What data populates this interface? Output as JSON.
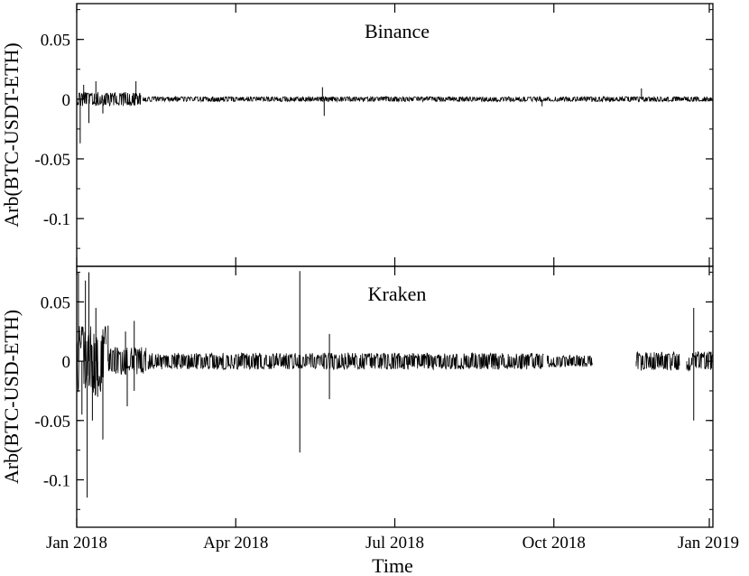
{
  "chart_data": {
    "type": "line",
    "xlabel": "Time",
    "x_ticks": [
      "Jan 2018",
      "Apr 2018",
      "Jul 2018",
      "Oct 2018",
      "Jan 2019"
    ],
    "x_range": [
      "2018-01-01",
      "2019-01-01"
    ],
    "grid": false,
    "line_color": "#000000",
    "panels": [
      {
        "title": "Binance",
        "ylabel": "Arb(BTC-USDT-ETH)",
        "ylim": [
          -0.14,
          0.08
        ],
        "y_ticks": [
          0.05,
          0,
          -0.05,
          -0.1
        ],
        "y_tick_labels": [
          "0.05",
          "0",
          "-0.05",
          "-0.1"
        ],
        "segments": [
          {
            "start": "2018-01-01",
            "end": "2018-02-07",
            "band": 0.006
          },
          {
            "start": "2018-02-08",
            "end": "2019-01-01",
            "band": 0.002
          }
        ],
        "spikes": [
          {
            "date": "2018-01-03",
            "value": -0.037
          },
          {
            "date": "2018-01-05",
            "value": 0.012
          },
          {
            "date": "2018-01-08",
            "value": -0.02
          },
          {
            "date": "2018-01-12",
            "value": 0.015
          },
          {
            "date": "2018-01-16",
            "value": -0.012
          },
          {
            "date": "2018-02-04",
            "value": 0.015
          },
          {
            "date": "2018-05-22",
            "value": 0.01
          },
          {
            "date": "2018-05-23",
            "value": -0.014
          },
          {
            "date": "2018-09-25",
            "value": -0.006
          },
          {
            "date": "2018-11-21",
            "value": 0.009
          }
        ]
      },
      {
        "title": "Kraken",
        "ylabel": "Arb(BTC-USD-ETH)",
        "ylim": [
          -0.14,
          0.08
        ],
        "y_ticks": [
          0.05,
          0,
          -0.05,
          -0.1
        ],
        "y_tick_labels": [
          "0.05",
          "0",
          "-0.05",
          "-0.1"
        ],
        "segments": [
          {
            "start": "2018-01-01",
            "end": "2018-01-18",
            "band": 0.03
          },
          {
            "start": "2018-01-19",
            "end": "2018-02-10",
            "band": 0.012
          },
          {
            "start": "2018-02-11",
            "end": "2018-09-26",
            "band": 0.007
          },
          {
            "start": "2018-09-28",
            "end": "2018-10-24",
            "band": 0.005
          },
          {
            "start": "2018-11-18",
            "end": "2018-12-13",
            "band": 0.008
          },
          {
            "start": "2018-12-17",
            "end": "2019-01-01",
            "band": 0.008
          }
        ],
        "spikes": [
          {
            "date": "2018-01-02",
            "value": 0.075
          },
          {
            "date": "2018-01-04",
            "value": -0.045
          },
          {
            "date": "2018-01-06",
            "value": 0.068
          },
          {
            "date": "2018-01-07",
            "value": -0.115
          },
          {
            "date": "2018-01-08",
            "value": 0.075
          },
          {
            "date": "2018-01-10",
            "value": -0.05
          },
          {
            "date": "2018-01-12",
            "value": 0.045
          },
          {
            "date": "2018-01-13",
            "value": -0.03
          },
          {
            "date": "2018-01-16",
            "value": -0.066
          },
          {
            "date": "2018-01-19",
            "value": 0.03
          },
          {
            "date": "2018-01-29",
            "value": 0.025
          },
          {
            "date": "2018-01-30",
            "value": -0.038
          },
          {
            "date": "2018-02-03",
            "value": 0.034
          },
          {
            "date": "2018-02-03",
            "value": -0.025
          },
          {
            "date": "2018-05-09",
            "value": 0.076
          },
          {
            "date": "2018-05-09",
            "value": -0.077
          },
          {
            "date": "2018-05-26",
            "value": 0.023
          },
          {
            "date": "2018-05-26",
            "value": -0.032
          },
          {
            "date": "2018-12-21",
            "value": 0.045
          },
          {
            "date": "2018-12-21",
            "value": -0.05
          }
        ]
      }
    ]
  }
}
